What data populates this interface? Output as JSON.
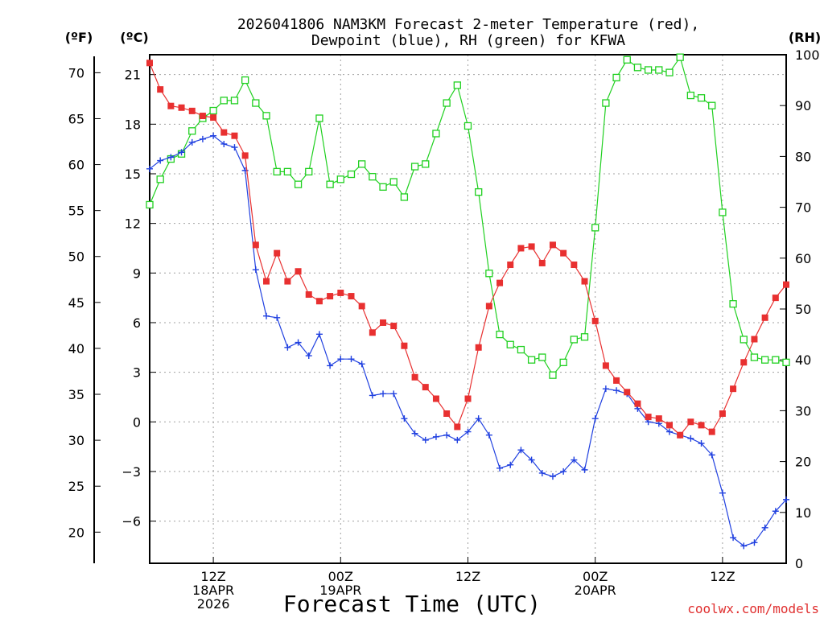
{
  "chart_data": {
    "type": "line",
    "title_line1": "2026041806 NAM3KM Forecast 2-meter Temperature (red),",
    "title_line2": "Dewpoint (blue), RH (green) for KFWA",
    "xlabel": "Forecast Time (UTC)",
    "credit": "coolwx.com/models",
    "units": {
      "f": "(ºF)",
      "c": "(ºC)",
      "rh": "(RH)"
    },
    "x_ticks": [
      {
        "h": 6,
        "lines": [
          "12Z",
          "18APR",
          "2026"
        ]
      },
      {
        "h": 18,
        "lines": [
          "00Z",
          "19APR"
        ]
      },
      {
        "h": 30,
        "lines": [
          "12Z"
        ]
      },
      {
        "h": 42,
        "lines": [
          "00Z",
          "20APR"
        ]
      },
      {
        "h": 54,
        "lines": [
          "12Z"
        ]
      }
    ],
    "x_range": [
      0,
      60
    ],
    "c_ticks": [
      "21",
      "18",
      "15",
      "12",
      "9",
      "6",
      "3",
      "0",
      "−3",
      "−6"
    ],
    "c_values": [
      21,
      18,
      15,
      12,
      9,
      6,
      3,
      0,
      -3,
      -6
    ],
    "c_range": [
      -8.55,
      22.2
    ],
    "f_ticks": [
      "70",
      "65",
      "60",
      "55",
      "50",
      "45",
      "40",
      "35",
      "30",
      "25",
      "20"
    ],
    "f_values": [
      70,
      65,
      60,
      55,
      50,
      45,
      40,
      35,
      30,
      25,
      20
    ],
    "rh_ticks": [
      "100",
      "90",
      "80",
      "70",
      "60",
      "50",
      "40",
      "30",
      "20",
      "10",
      "0"
    ],
    "rh_values": [
      100,
      90,
      80,
      70,
      60,
      50,
      40,
      30,
      20,
      10,
      0
    ],
    "rh_range": [
      0,
      100
    ],
    "colors": {
      "temp": "#e83030",
      "dew": "#2040e0",
      "rh": "#20d020"
    },
    "series": [
      {
        "name": "Temperature",
        "values": [
          21.7,
          20.1,
          19.1,
          19.0,
          18.8,
          18.5,
          18.4,
          17.5,
          17.3,
          16.1,
          10.7,
          8.5,
          10.2,
          8.5,
          9.1,
          7.7,
          7.3,
          7.6,
          7.8,
          7.6,
          7.0,
          5.4,
          6.0,
          5.8,
          4.6,
          2.7,
          2.1,
          1.4,
          0.5,
          -0.3,
          1.4,
          4.5,
          7.0,
          8.4,
          9.5,
          10.5,
          10.6,
          9.6,
          10.7,
          10.2,
          9.5,
          8.5,
          6.1,
          3.4,
          2.5,
          1.8,
          1.1,
          0.3,
          0.2,
          -0.2,
          -0.8,
          0.0,
          -0.2,
          -0.6,
          0.5,
          2.0,
          3.6,
          5.0,
          6.3,
          7.5,
          8.3
        ]
      },
      {
        "name": "Dewpoint",
        "values": [
          15.3,
          15.8,
          16.0,
          16.3,
          16.9,
          17.1,
          17.3,
          16.8,
          16.6,
          15.2,
          9.2,
          6.4,
          6.3,
          4.5,
          4.8,
          4.0,
          5.3,
          3.4,
          3.8,
          3.8,
          3.5,
          1.6,
          1.7,
          1.7,
          0.2,
          -0.7,
          -1.1,
          -0.9,
          -0.8,
          -1.1,
          -0.6,
          0.2,
          -0.8,
          -2.8,
          -2.6,
          -1.7,
          -2.3,
          -3.1,
          -3.3,
          -3.0,
          -2.3,
          -2.9,
          0.2,
          2.0,
          1.9,
          1.7,
          0.8,
          0.0,
          -0.1,
          -0.6,
          -0.8,
          -1.0,
          -1.3,
          -2.0,
          -4.3,
          -7.0,
          -7.5,
          -7.3,
          -6.4,
          -5.4,
          -4.7
        ]
      },
      {
        "name": "RH",
        "values": [
          70.5,
          75.5,
          79.5,
          80.5,
          85.0,
          87.5,
          89.0,
          91.0,
          91.0,
          95.0,
          90.5,
          88.0,
          77.0,
          77.0,
          74.5,
          77.0,
          87.5,
          74.5,
          75.5,
          76.5,
          78.5,
          76.0,
          74.0,
          75.0,
          72.0,
          78.0,
          78.5,
          84.5,
          90.5,
          94.0,
          86.0,
          73.0,
          57.0,
          45.0,
          43.0,
          42.0,
          40.0,
          40.5,
          37.0,
          39.5,
          44.0,
          44.5,
          66.0,
          90.5,
          95.5,
          99.0,
          97.5,
          97.0,
          97.0,
          96.5,
          99.5,
          92.0,
          91.5,
          90.0,
          69.0,
          51.0,
          44.0,
          40.5,
          40.0,
          40.0,
          39.5
        ]
      }
    ]
  }
}
